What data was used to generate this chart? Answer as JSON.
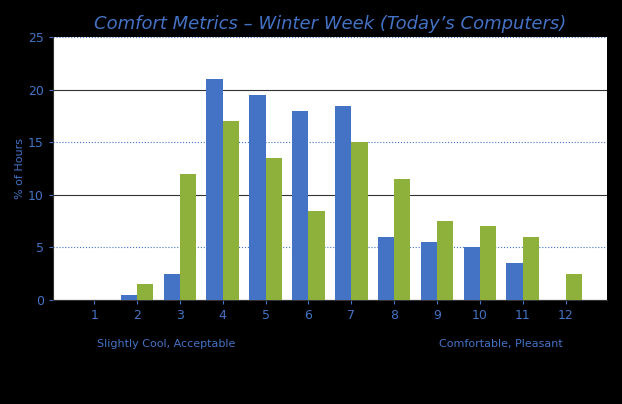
{
  "title": "Comfort Metrics – Winter Week (Today’s Computers)",
  "categories": [
    1,
    2,
    3,
    4,
    5,
    6,
    7,
    8,
    9,
    10,
    11,
    12
  ],
  "blue_values": [
    0,
    0.5,
    2.5,
    21,
    19.5,
    18,
    18.5,
    6,
    5.5,
    5,
    3.5,
    0
  ],
  "green_values": [
    0,
    1.5,
    12,
    17,
    13.5,
    8.5,
    15,
    11.5,
    7.5,
    7,
    6,
    2.5
  ],
  "blue_color": "#4472C4",
  "green_color": "#8DB13A",
  "xlabel_left": "Slightly Cool, Acceptable",
  "xlabel_right": "Comfortable, Pleasant",
  "ylabel": "% of Hours",
  "ylim": [
    0,
    25
  ],
  "yticks": [
    0,
    5,
    10,
    15,
    20,
    25
  ],
  "outer_bg": "#000000",
  "chart_bg": "#FFFFFF",
  "grid_color_dotted": "#4472C4",
  "grid_color_solid": "#333333",
  "title_color": "#4472C4",
  "title_fontsize": 13,
  "axis_fontsize": 8,
  "tick_fontsize": 9,
  "ylabel_color": "#4472C4",
  "tick_color": "#4472C4",
  "bar_width": 0.38
}
